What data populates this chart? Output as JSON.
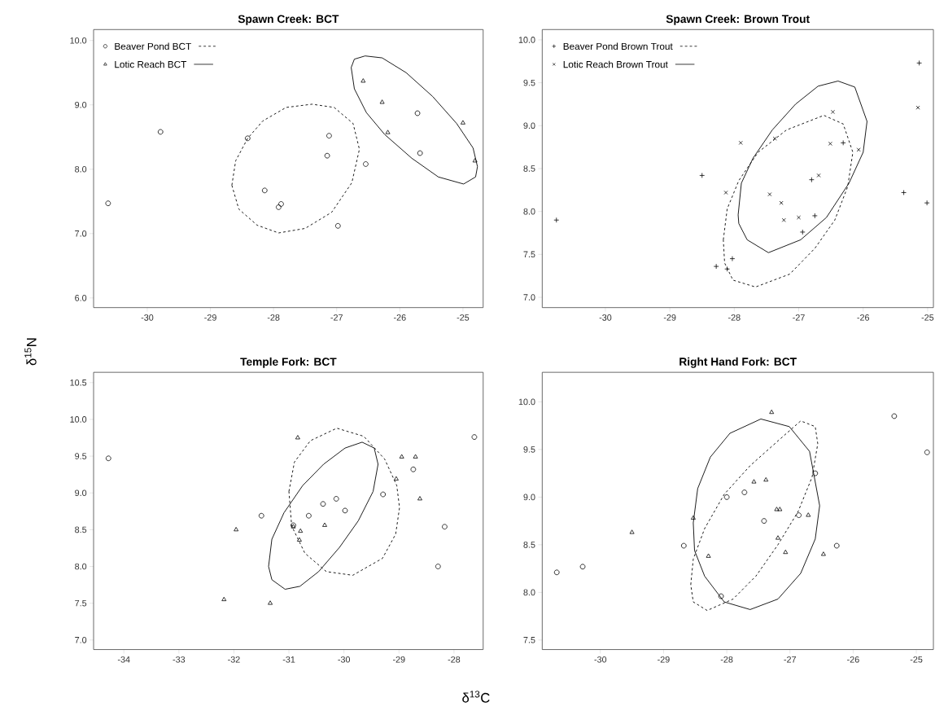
{
  "chart_data": [
    {
      "type": "scatter",
      "title": "Spawn Creek: BCT",
      "ylabel": "δ$^{15}$N",
      "legend": "top left",
      "xlim": [
        -30.85,
        -24.68
      ],
      "ylim": [
        5.85,
        10.17
      ],
      "xticks": [
        -30,
        -29,
        -28,
        -27,
        -26,
        -25
      ],
      "yticks": [
        {
          "value": 6,
          "label": "6.0"
        },
        {
          "value": 7,
          "label": "7.0"
        },
        {
          "value": 8,
          "label": "8.0"
        },
        {
          "value": 9,
          "label": "9.0"
        },
        {
          "value": 10,
          "label": "10.0"
        }
      ],
      "series": [
        {
          "name": "Beaver Pond BCT",
          "type": "scatter",
          "marker": "circle",
          "color": "#000000",
          "x": [
            -30.62,
            -29.79,
            -28.41,
            -28.14,
            -27.92,
            -27.88,
            -27.12,
            -27.15,
            -26.98,
            -26.54,
            -25.72,
            -25.68
          ],
          "values": [
            7.47,
            8.58,
            8.48,
            7.67,
            7.41,
            7.46,
            8.52,
            8.21,
            7.12,
            8.08,
            8.87,
            8.25
          ]
        },
        {
          "name": "Lotic Reach BCT",
          "type": "scatter",
          "marker": "triangle",
          "color": "#000000",
          "x": [
            -26.58,
            -26.28,
            -26.19,
            -25.0,
            -24.81
          ],
          "values": [
            9.37,
            9.04,
            8.57,
            8.72,
            8.13
          ]
        }
      ]
    },
    {
      "type": "scatter",
      "title": "Spawn Creek: Brown Trout",
      "legend": "top left",
      "xlim": [
        -30.98,
        -24.91
      ],
      "ylim": [
        6.88,
        10.12
      ],
      "xticks": [
        -30,
        -29,
        -28,
        -27,
        -26,
        -25
      ],
      "yticks": [
        {
          "value": 7,
          "label": "7.0"
        },
        {
          "value": 7.5,
          "label": "7.5"
        },
        {
          "value": 8,
          "label": "8.0"
        },
        {
          "value": 8.5,
          "label": "8.5"
        },
        {
          "value": 9,
          "label": "9.0"
        },
        {
          "value": 9.5,
          "label": "9.5"
        },
        {
          "value": 10,
          "label": "10.0"
        }
      ],
      "series": [
        {
          "name": "Beaver Pond Brown Trout",
          "type": "scatter",
          "marker": "plus",
          "color": "#000000",
          "x": [
            -30.76,
            -28.5,
            -28.28,
            -28.11,
            -28.03,
            -26.94,
            -26.75,
            -26.8,
            -26.31,
            -25.37,
            -25.13,
            -25.01
          ],
          "values": [
            7.9,
            8.42,
            7.36,
            7.33,
            7.45,
            7.76,
            7.95,
            8.37,
            8.8,
            8.22,
            9.73,
            8.1
          ]
        },
        {
          "name": "Lotic Reach Brown Trout",
          "type": "scatter",
          "marker": "cross",
          "color": "#000000",
          "x": [
            -27.9,
            -28.13,
            -27.37,
            -27.45,
            -27.27,
            -27.23,
            -27.0,
            -26.69,
            -26.51,
            -26.47,
            -26.07,
            -25.15
          ],
          "values": [
            8.8,
            8.22,
            8.85,
            8.2,
            8.1,
            7.9,
            7.93,
            8.42,
            8.79,
            9.16,
            8.72,
            9.21
          ]
        }
      ]
    },
    {
      "type": "scatter",
      "title": "Temple Fork: BCT",
      "xlabel": "δ$^{13}$C",
      "xlim": [
        -34.55,
        -27.47
      ],
      "ylim": [
        6.87,
        10.64
      ],
      "xticks": [
        -34,
        -33,
        -32,
        -31,
        -30,
        -29,
        -28
      ],
      "yticks": [
        {
          "value": 7,
          "label": "7.0"
        },
        {
          "value": 7.5,
          "label": "7.5"
        },
        {
          "value": 8,
          "label": "8.0"
        },
        {
          "value": 8.5,
          "label": "8.5"
        },
        {
          "value": 9,
          "label": "9.0"
        },
        {
          "value": 9.5,
          "label": "9.5"
        },
        {
          "value": 10,
          "label": "10.0"
        },
        {
          "value": 10.5,
          "label": "10.5"
        }
      ],
      "series": [
        {
          "type": "scatter",
          "marker": "circle",
          "color": "#000000",
          "x": [
            -34.28,
            -31.5,
            -30.92,
            -30.64,
            -30.38,
            -30.14,
            -29.98,
            -29.29,
            -28.74,
            -28.17,
            -28.29,
            -27.63
          ],
          "values": [
            9.47,
            8.69,
            8.56,
            8.69,
            8.85,
            8.92,
            8.76,
            8.98,
            9.32,
            8.54,
            8.0,
            9.76
          ]
        },
        {
          "type": "scatter",
          "marker": "triangle",
          "color": "#000000",
          "x": [
            -30.84,
            -31.96,
            -32.18,
            -31.34,
            -30.92,
            -30.79,
            -30.81,
            -30.35,
            -29.05,
            -28.95,
            -28.7,
            -28.62
          ],
          "values": [
            9.75,
            8.5,
            7.55,
            7.5,
            8.54,
            8.48,
            8.36,
            8.56,
            9.19,
            9.49,
            9.49,
            8.92
          ]
        }
      ]
    },
    {
      "type": "scatter",
      "title": "Right Hand Fork: BCT",
      "xlim": [
        -30.92,
        -24.73
      ],
      "ylim": [
        7.4,
        10.31
      ],
      "xticks": [
        -30,
        -29,
        -28,
        -27,
        -26,
        -25
      ],
      "yticks": [
        {
          "value": 7.5,
          "label": "7.5"
        },
        {
          "value": 8,
          "label": "8.0"
        },
        {
          "value": 8.5,
          "label": "8.5"
        },
        {
          "value": 9,
          "label": "9.0"
        },
        {
          "value": 9.5,
          "label": "9.5"
        },
        {
          "value": 10,
          "label": "10.0"
        }
      ],
      "series": [
        {
          "type": "scatter",
          "marker": "circle",
          "color": "#000000",
          "x": [
            -30.69,
            -30.28,
            -28.68,
            -28.09,
            -28.0,
            -27.72,
            -27.41,
            -26.86,
            -26.6,
            -26.26,
            -25.35,
            -24.83
          ],
          "values": [
            8.21,
            8.27,
            8.49,
            7.96,
            9.0,
            9.05,
            8.75,
            8.81,
            9.25,
            8.49,
            9.85,
            9.47
          ]
        },
        {
          "type": "scatter",
          "marker": "triangle",
          "color": "#000000",
          "x": [
            -29.5,
            -28.53,
            -28.29,
            -27.57,
            -27.38,
            -27.29,
            -27.21,
            -27.16,
            -27.19,
            -27.07,
            -26.71,
            -26.47
          ],
          "values": [
            8.63,
            8.78,
            8.38,
            9.16,
            9.18,
            9.89,
            8.87,
            8.87,
            8.57,
            8.42,
            8.81,
            8.4
          ]
        }
      ]
    }
  ]
}
